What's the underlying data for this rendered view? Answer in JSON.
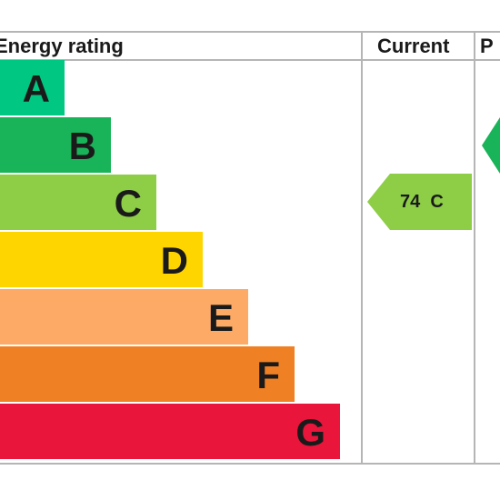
{
  "chart_data": {
    "type": "bar",
    "title": "",
    "headers": {
      "rating": "Energy rating",
      "current": "Current",
      "potential": "P"
    },
    "bands": [
      {
        "letter": "A",
        "color": "#00c781"
      },
      {
        "letter": "B",
        "color": "#19b459"
      },
      {
        "letter": "C",
        "color": "#8dce46"
      },
      {
        "letter": "D",
        "color": "#ffd500"
      },
      {
        "letter": "E",
        "color": "#fcaa65"
      },
      {
        "letter": "F",
        "color": "#ef8023"
      },
      {
        "letter": "G",
        "color": "#e9153b"
      }
    ],
    "current": {
      "value": 74,
      "band": "C",
      "label": "74  C",
      "color": "#8dce46"
    },
    "potential": {
      "band": "B",
      "color": "#19b459"
    }
  }
}
